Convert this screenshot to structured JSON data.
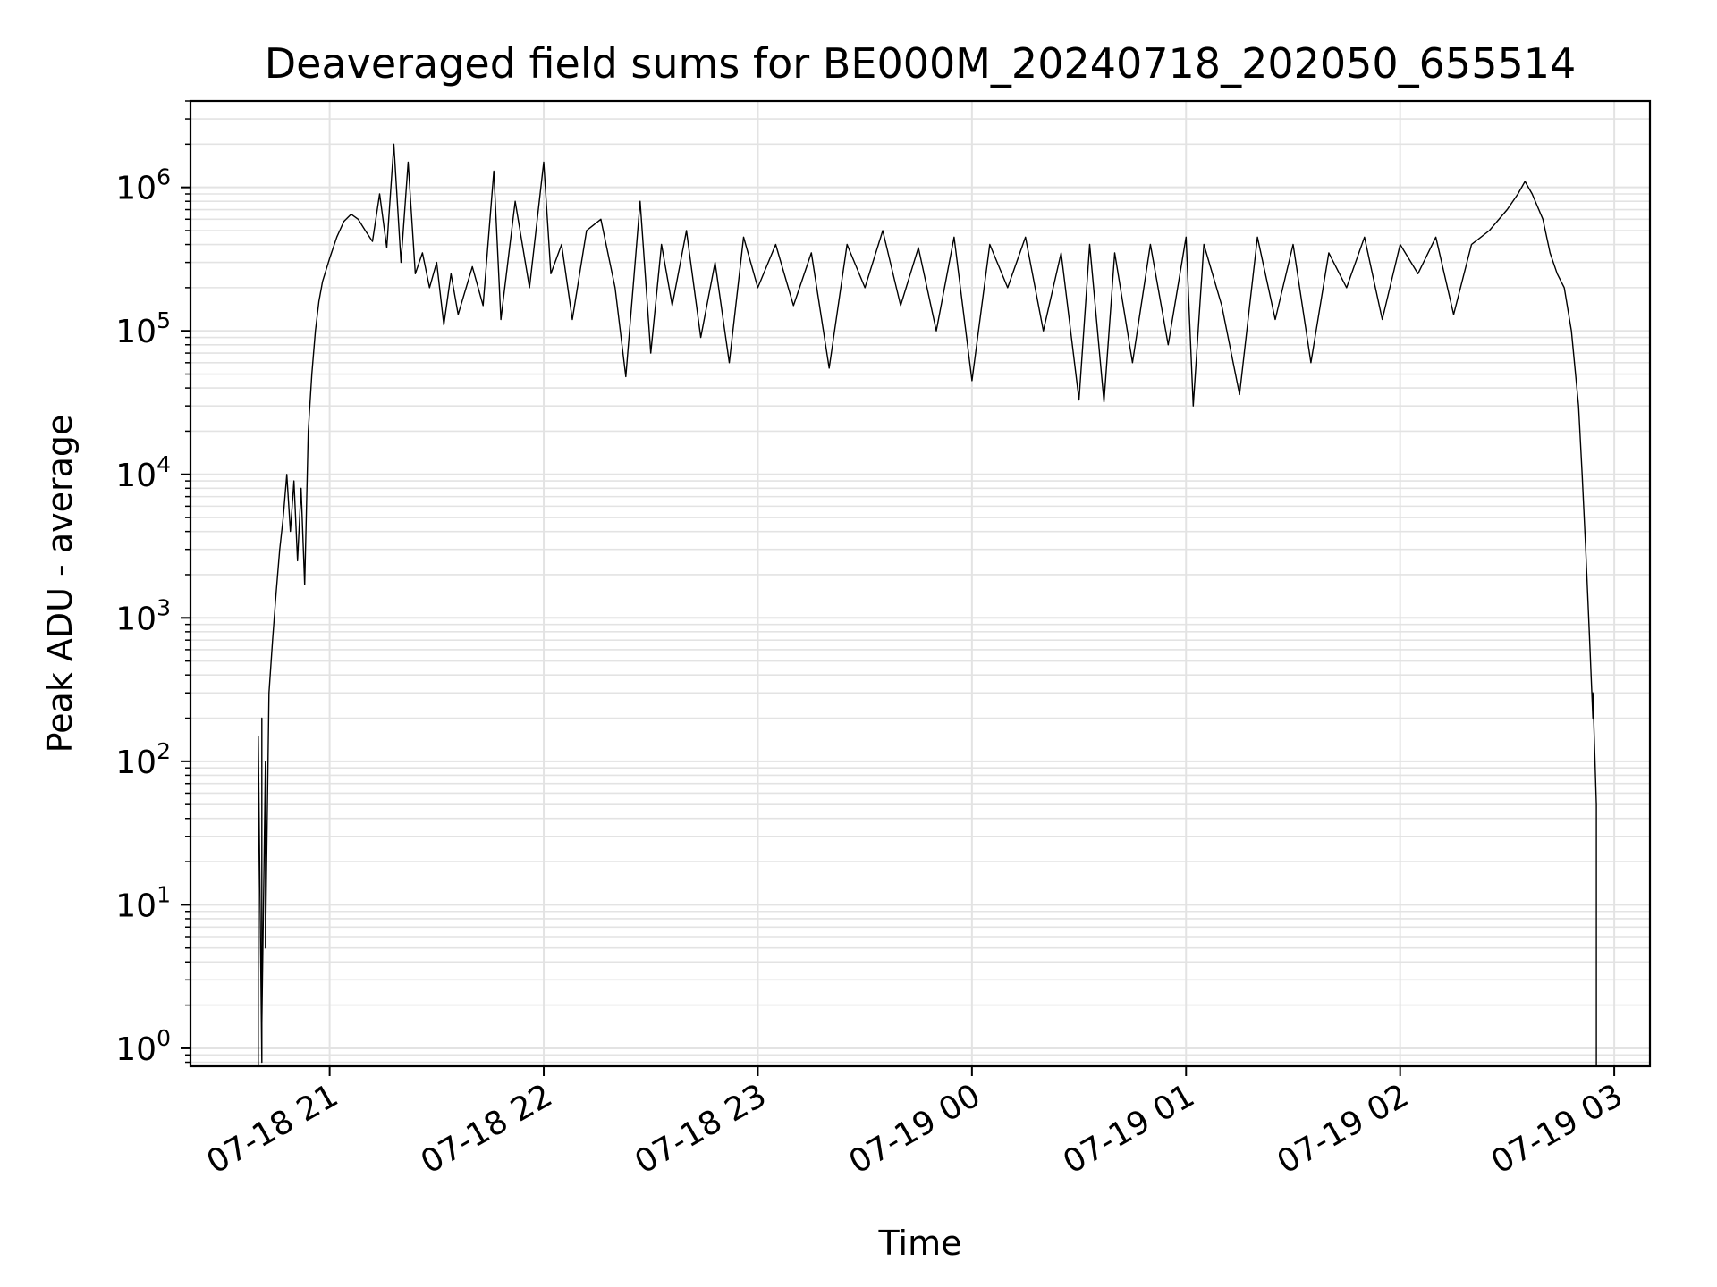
{
  "chart_data": {
    "type": "line",
    "title": "Deaveraged field sums for BE000M_20240718_202050_655514",
    "xlabel": "Time",
    "ylabel": "Peak ADU - average",
    "yscale": "log",
    "grid": true,
    "legend": "none",
    "line_color": "#000000",
    "xlim": [
      "2024-07-18 20:21",
      "2024-07-19 03:10"
    ],
    "ylim": [
      0.75,
      4000000
    ],
    "x_ticks": [
      {
        "value": "2024-07-18 21:00",
        "label": "07-18 21"
      },
      {
        "value": "2024-07-18 22:00",
        "label": "07-18 22"
      },
      {
        "value": "2024-07-18 23:00",
        "label": "07-18 23"
      },
      {
        "value": "2024-07-19 00:00",
        "label": "07-19 00"
      },
      {
        "value": "2024-07-19 01:00",
        "label": "07-19 01"
      },
      {
        "value": "2024-07-19 02:00",
        "label": "07-19 02"
      },
      {
        "value": "2024-07-19 03:00",
        "label": "07-19 03"
      }
    ],
    "y_ticks": [
      {
        "value": 1,
        "base": "10",
        "exp": "0"
      },
      {
        "value": 10,
        "base": "10",
        "exp": "1"
      },
      {
        "value": 100,
        "base": "10",
        "exp": "2"
      },
      {
        "value": 1000,
        "base": "10",
        "exp": "3"
      },
      {
        "value": 10000,
        "base": "10",
        "exp": "4"
      },
      {
        "value": 100000,
        "base": "10",
        "exp": "5"
      },
      {
        "value": 1000000,
        "base": "10",
        "exp": "6"
      }
    ],
    "series": [
      {
        "points": [
          [
            "2024-07-18 20:40",
            0.75
          ],
          [
            "2024-07-18 20:40",
            150
          ],
          [
            "2024-07-18 20:41",
            0.8
          ],
          [
            "2024-07-18 20:41",
            200
          ],
          [
            "2024-07-18 20:41",
            1.5
          ],
          [
            "2024-07-18 20:42",
            100
          ],
          [
            "2024-07-18 20:42",
            5
          ],
          [
            "2024-07-18 20:43",
            300
          ],
          [
            "2024-07-18 20:44",
            700
          ],
          [
            "2024-07-18 20:45",
            1500
          ],
          [
            "2024-07-18 20:46",
            3000
          ],
          [
            "2024-07-18 20:47",
            5000
          ],
          [
            "2024-07-18 20:48",
            10000
          ],
          [
            "2024-07-18 20:49",
            4000
          ],
          [
            "2024-07-18 20:50",
            9000
          ],
          [
            "2024-07-18 20:51",
            2500
          ],
          [
            "2024-07-18 20:52",
            8000
          ],
          [
            "2024-07-18 20:53",
            1700
          ],
          [
            "2024-07-18 20:54",
            20000
          ],
          [
            "2024-07-18 20:55",
            50000
          ],
          [
            "2024-07-18 20:56",
            100000
          ],
          [
            "2024-07-18 20:57",
            160000
          ],
          [
            "2024-07-18 20:58",
            220000
          ],
          [
            "2024-07-18 21:00",
            320000
          ],
          [
            "2024-07-18 21:02",
            450000
          ],
          [
            "2024-07-18 21:04",
            580000
          ],
          [
            "2024-07-18 21:06",
            650000
          ],
          [
            "2024-07-18 21:08",
            600000
          ],
          [
            "2024-07-18 21:10",
            500000
          ],
          [
            "2024-07-18 21:12",
            420000
          ],
          [
            "2024-07-18 21:14",
            900000
          ],
          [
            "2024-07-18 21:16",
            380000
          ],
          [
            "2024-07-18 21:18",
            2000000
          ],
          [
            "2024-07-18 21:20",
            300000
          ],
          [
            "2024-07-18 21:22",
            1500000
          ],
          [
            "2024-07-18 21:24",
            250000
          ],
          [
            "2024-07-18 21:26",
            350000
          ],
          [
            "2024-07-18 21:28",
            200000
          ],
          [
            "2024-07-18 21:30",
            300000
          ],
          [
            "2024-07-18 21:32",
            110000
          ],
          [
            "2024-07-18 21:34",
            250000
          ],
          [
            "2024-07-18 21:36",
            130000
          ],
          [
            "2024-07-18 21:40",
            280000
          ],
          [
            "2024-07-18 21:43",
            150000
          ],
          [
            "2024-07-18 21:46",
            1300000
          ],
          [
            "2024-07-18 21:48",
            120000
          ],
          [
            "2024-07-18 21:52",
            800000
          ],
          [
            "2024-07-18 21:56",
            200000
          ],
          [
            "2024-07-18 22:00",
            1500000
          ],
          [
            "2024-07-18 22:02",
            250000
          ],
          [
            "2024-07-18 22:05",
            400000
          ],
          [
            "2024-07-18 22:08",
            120000
          ],
          [
            "2024-07-18 22:12",
            500000
          ],
          [
            "2024-07-18 22:16",
            600000
          ],
          [
            "2024-07-18 22:20",
            200000
          ],
          [
            "2024-07-18 22:23",
            48000
          ],
          [
            "2024-07-18 22:27",
            800000
          ],
          [
            "2024-07-18 22:30",
            70000
          ],
          [
            "2024-07-18 22:33",
            400000
          ],
          [
            "2024-07-18 22:36",
            150000
          ],
          [
            "2024-07-18 22:40",
            500000
          ],
          [
            "2024-07-18 22:44",
            90000
          ],
          [
            "2024-07-18 22:48",
            300000
          ],
          [
            "2024-07-18 22:52",
            60000
          ],
          [
            "2024-07-18 22:56",
            450000
          ],
          [
            "2024-07-18 23:00",
            200000
          ],
          [
            "2024-07-18 23:05",
            400000
          ],
          [
            "2024-07-18 23:10",
            150000
          ],
          [
            "2024-07-18 23:15",
            350000
          ],
          [
            "2024-07-18 23:20",
            55000
          ],
          [
            "2024-07-18 23:25",
            400000
          ],
          [
            "2024-07-18 23:30",
            200000
          ],
          [
            "2024-07-18 23:35",
            500000
          ],
          [
            "2024-07-18 23:40",
            150000
          ],
          [
            "2024-07-18 23:45",
            380000
          ],
          [
            "2024-07-18 23:50",
            100000
          ],
          [
            "2024-07-18 23:55",
            450000
          ],
          [
            "2024-07-19 00:00",
            45000
          ],
          [
            "2024-07-19 00:05",
            400000
          ],
          [
            "2024-07-19 00:10",
            200000
          ],
          [
            "2024-07-19 00:15",
            450000
          ],
          [
            "2024-07-19 00:20",
            100000
          ],
          [
            "2024-07-19 00:25",
            350000
          ],
          [
            "2024-07-19 00:30",
            33000
          ],
          [
            "2024-07-19 00:33",
            400000
          ],
          [
            "2024-07-19 00:37",
            32000
          ],
          [
            "2024-07-19 00:40",
            350000
          ],
          [
            "2024-07-19 00:45",
            60000
          ],
          [
            "2024-07-19 00:50",
            400000
          ],
          [
            "2024-07-19 00:55",
            80000
          ],
          [
            "2024-07-19 01:00",
            450000
          ],
          [
            "2024-07-19 01:02",
            30000
          ],
          [
            "2024-07-19 01:05",
            400000
          ],
          [
            "2024-07-19 01:10",
            150000
          ],
          [
            "2024-07-19 01:15",
            36000
          ],
          [
            "2024-07-19 01:20",
            450000
          ],
          [
            "2024-07-19 01:25",
            120000
          ],
          [
            "2024-07-19 01:30",
            400000
          ],
          [
            "2024-07-19 01:35",
            60000
          ],
          [
            "2024-07-19 01:40",
            350000
          ],
          [
            "2024-07-19 01:45",
            200000
          ],
          [
            "2024-07-19 01:50",
            450000
          ],
          [
            "2024-07-19 01:55",
            120000
          ],
          [
            "2024-07-19 02:00",
            400000
          ],
          [
            "2024-07-19 02:05",
            250000
          ],
          [
            "2024-07-19 02:10",
            450000
          ],
          [
            "2024-07-19 02:15",
            130000
          ],
          [
            "2024-07-19 02:20",
            400000
          ],
          [
            "2024-07-19 02:25",
            500000
          ],
          [
            "2024-07-19 02:30",
            700000
          ],
          [
            "2024-07-19 02:33",
            900000
          ],
          [
            "2024-07-19 02:35",
            1100000
          ],
          [
            "2024-07-19 02:37",
            900000
          ],
          [
            "2024-07-19 02:40",
            600000
          ],
          [
            "2024-07-19 02:42",
            350000
          ],
          [
            "2024-07-19 02:44",
            250000
          ],
          [
            "2024-07-19 02:46",
            200000
          ],
          [
            "2024-07-19 02:48",
            100000
          ],
          [
            "2024-07-19 02:50",
            30000
          ],
          [
            "2024-07-19 02:51",
            10000
          ],
          [
            "2024-07-19 02:52",
            3000
          ],
          [
            "2024-07-19 02:53",
            800
          ],
          [
            "2024-07-19 02:54",
            200
          ],
          [
            "2024-07-19 02:54",
            300
          ],
          [
            "2024-07-19 02:55",
            50
          ],
          [
            "2024-07-19 02:55",
            2
          ],
          [
            "2024-07-19 02:55",
            0.75
          ]
        ]
      }
    ]
  }
}
